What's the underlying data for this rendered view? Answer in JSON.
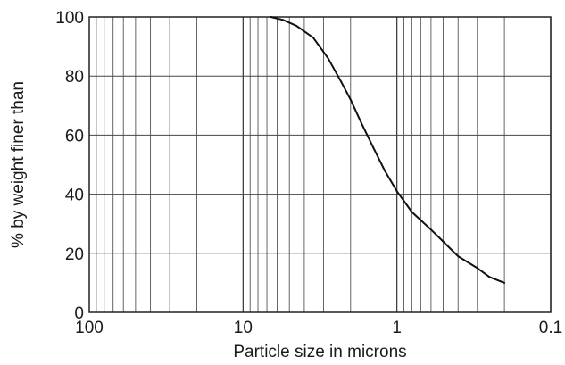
{
  "chart_data": {
    "type": "line",
    "title": "",
    "xlabel": "Particle size in microns",
    "ylabel": "% by weight finer than",
    "x_scale": "log",
    "x_reversed": true,
    "xlim": [
      100,
      0.1
    ],
    "ylim": [
      0,
      100
    ],
    "x_ticks": [
      {
        "value": 100,
        "label": "100"
      },
      {
        "value": 10,
        "label": "10"
      },
      {
        "value": 1,
        "label": "1"
      },
      {
        "value": 0.1,
        "label": "0.1"
      }
    ],
    "y_ticks": [
      {
        "value": 0,
        "label": "0"
      },
      {
        "value": 20,
        "label": "20"
      },
      {
        "value": 40,
        "label": "40"
      },
      {
        "value": 60,
        "label": "60"
      },
      {
        "value": 80,
        "label": "80"
      },
      {
        "value": 100,
        "label": "100"
      }
    ],
    "grid": true,
    "legend": "none",
    "series": [
      {
        "color": "#111111",
        "points": [
          {
            "x": 6.6,
            "y": 100
          },
          {
            "x": 5.5,
            "y": 99
          },
          {
            "x": 4.5,
            "y": 97
          },
          {
            "x": 3.5,
            "y": 93
          },
          {
            "x": 2.8,
            "y": 86
          },
          {
            "x": 2.3,
            "y": 78
          },
          {
            "x": 2.0,
            "y": 72
          },
          {
            "x": 1.7,
            "y": 64
          },
          {
            "x": 1.4,
            "y": 55
          },
          {
            "x": 1.2,
            "y": 48
          },
          {
            "x": 1.0,
            "y": 41
          },
          {
            "x": 0.8,
            "y": 34
          },
          {
            "x": 0.6,
            "y": 28
          },
          {
            "x": 0.5,
            "y": 24
          },
          {
            "x": 0.4,
            "y": 19
          },
          {
            "x": 0.3,
            "y": 15
          },
          {
            "x": 0.25,
            "y": 12
          },
          {
            "x": 0.2,
            "y": 10
          }
        ]
      }
    ]
  }
}
